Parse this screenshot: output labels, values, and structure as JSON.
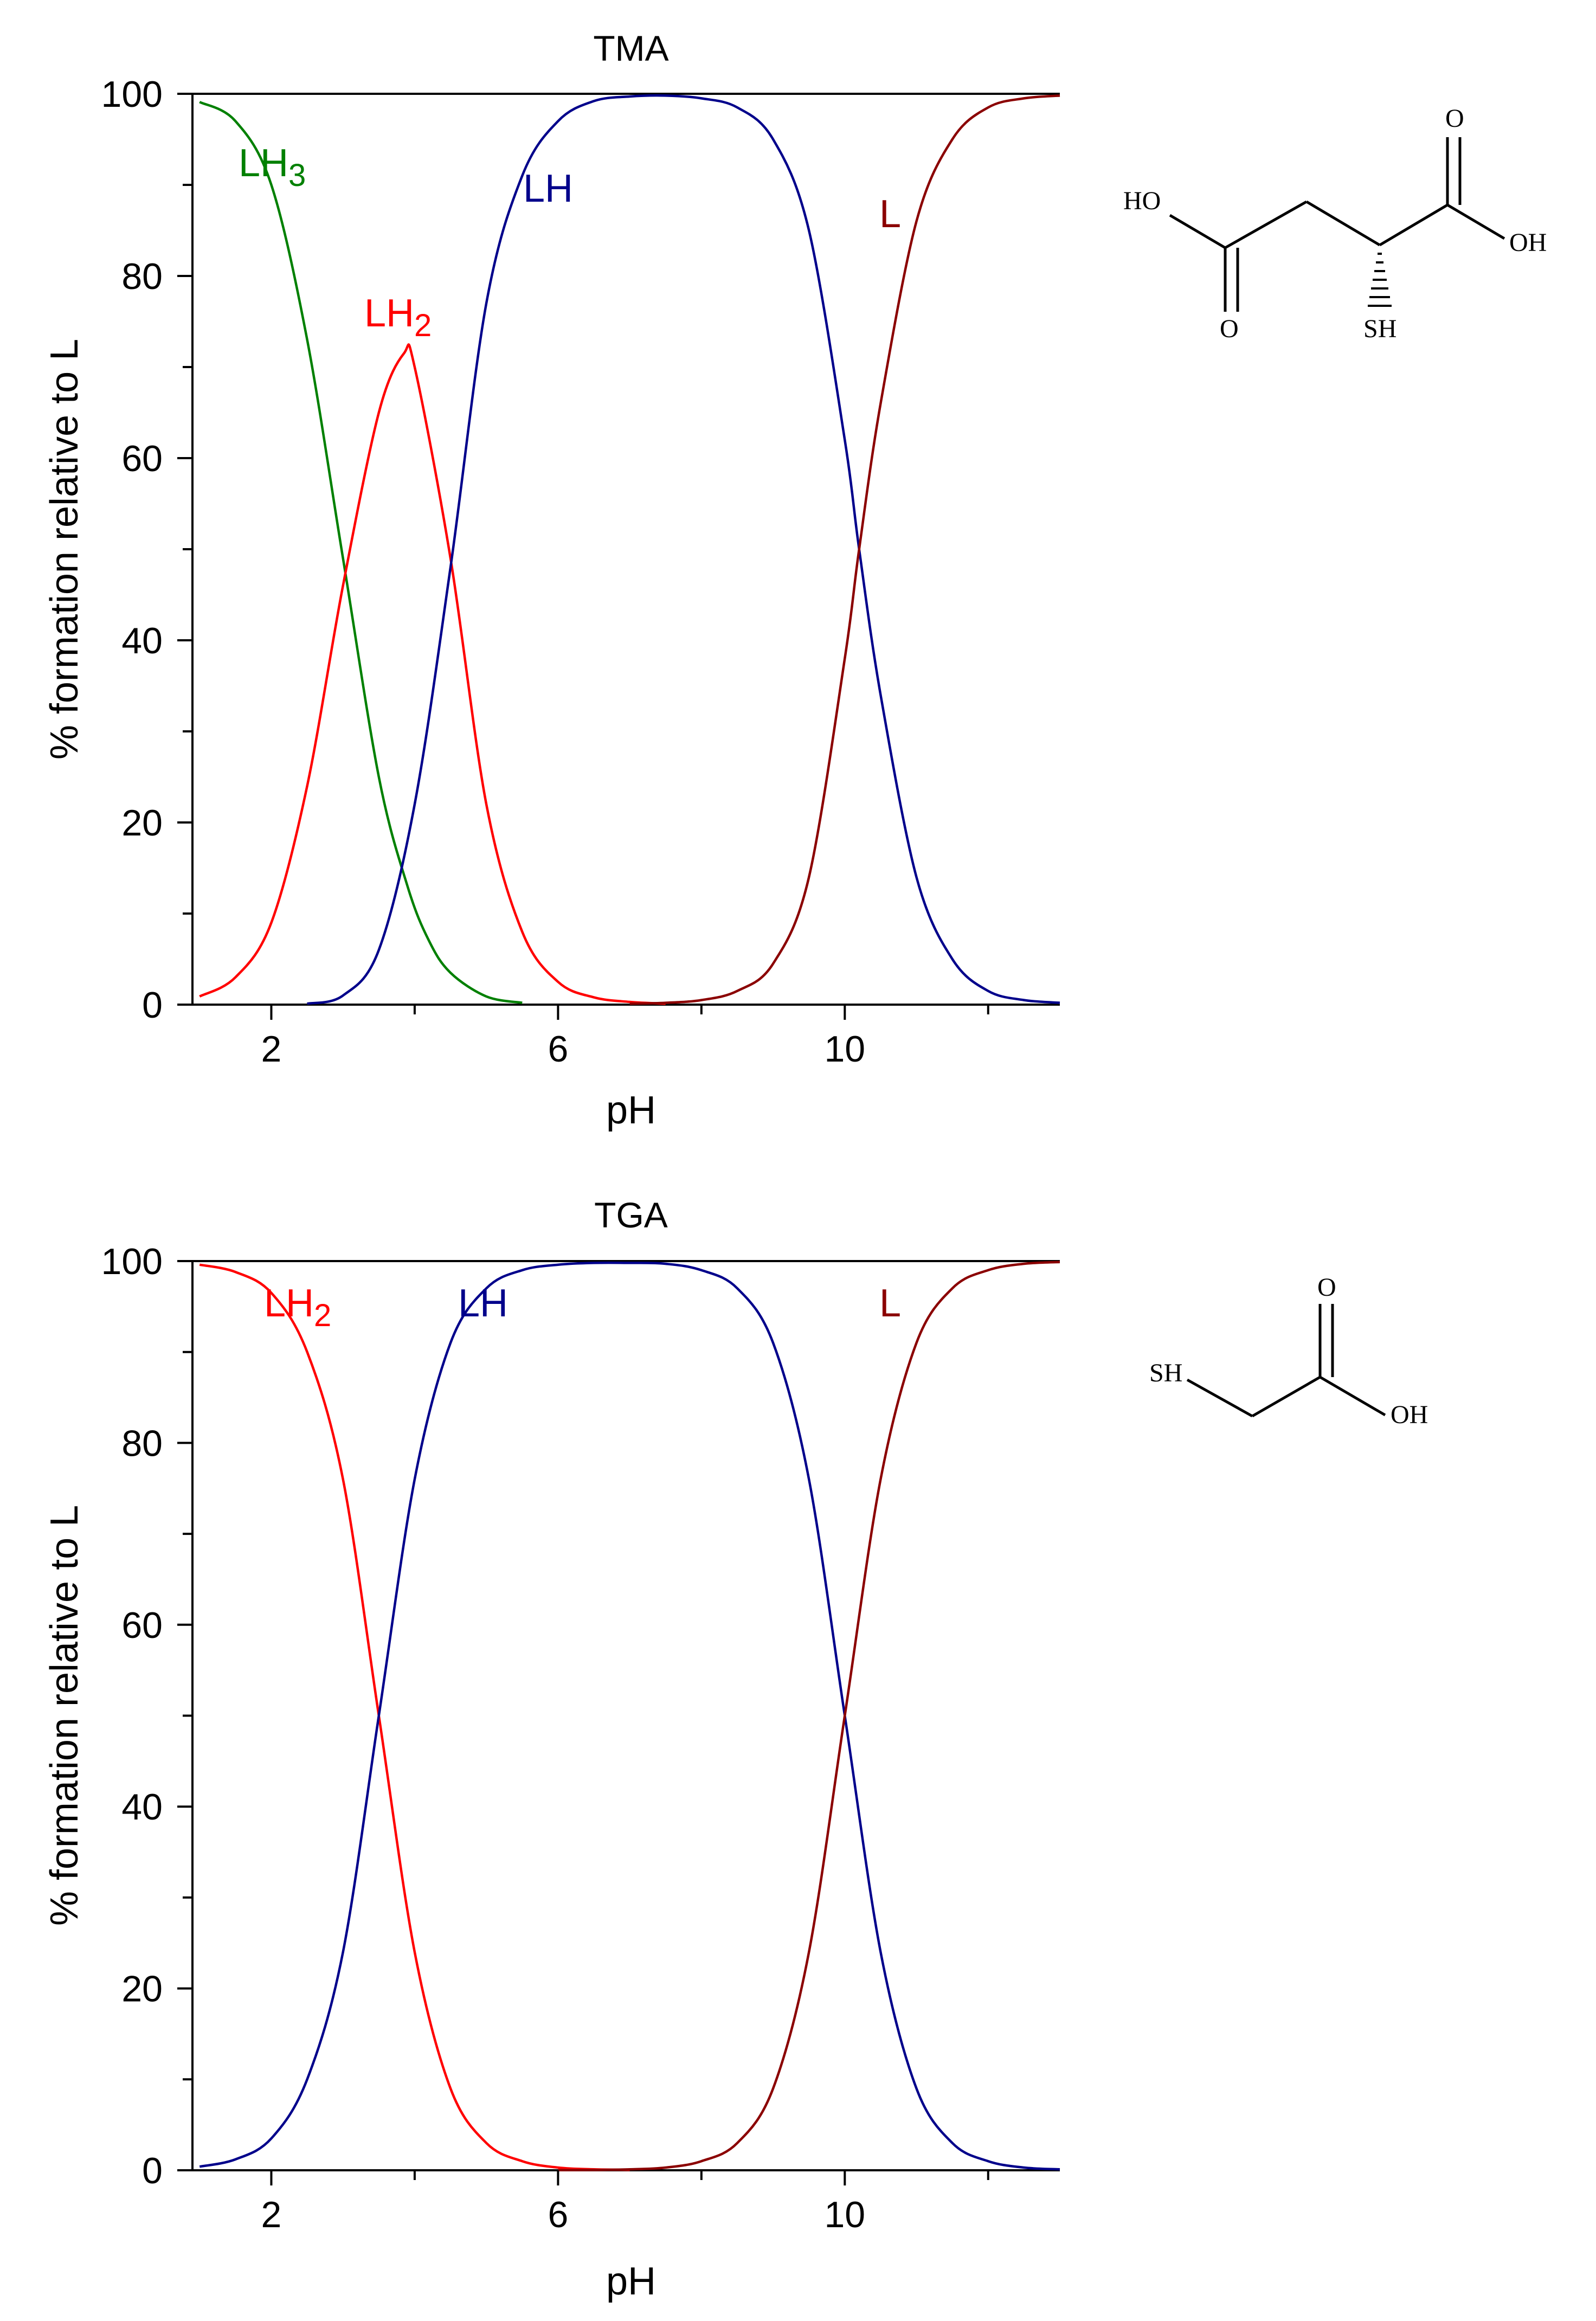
{
  "chart_data": [
    {
      "type": "line",
      "title": "TMA",
      "xlabel": "pH",
      "ylabel": "% formation relative to L",
      "xlim": [
        0.9,
        13.0
      ],
      "ylim": [
        0,
        100
      ],
      "x_major_ticks": [
        2,
        6,
        10
      ],
      "x_minor_ticks": [
        4,
        8,
        12
      ],
      "y_major_ticks": [
        0,
        20,
        40,
        60,
        80,
        100
      ],
      "y_minor_ticks": [
        10,
        30,
        50,
        70,
        90
      ],
      "grid": false,
      "pKa": [
        2.95,
        4.7,
        10.2
      ],
      "series": [
        {
          "name": "LH3",
          "label_main": "LH",
          "label_sub": "3",
          "color": "#008000",
          "x": [
            1.0,
            1.5,
            2.0,
            2.5,
            3.0,
            3.5,
            3.9,
            4.2,
            4.5,
            5.0,
            5.5
          ],
          "values": [
            99.1,
            97.0,
            90.0,
            73.0,
            49.0,
            25.0,
            13.0,
            7.0,
            3.5,
            0.9,
            0.2
          ]
        },
        {
          "name": "LH2",
          "label_main": "LH",
          "label_sub": "2",
          "color": "#ff0000",
          "x": [
            1.0,
            1.5,
            2.0,
            2.5,
            3.0,
            3.5,
            3.85,
            4.0,
            4.5,
            5.0,
            5.5,
            6.0,
            6.5,
            7.0,
            7.5
          ],
          "values": [
            0.9,
            3.0,
            9.0,
            24.0,
            46.0,
            65.0,
            71.5,
            70.0,
            49.0,
            22.0,
            8.0,
            2.5,
            0.8,
            0.3,
            0.1
          ]
        },
        {
          "name": "LH",
          "label_main": "LH",
          "label_sub": "",
          "color": "#00008b",
          "x": [
            2.5,
            3.0,
            3.5,
            4.0,
            4.5,
            5.0,
            5.5,
            6.0,
            6.5,
            7.0,
            7.5,
            8.0,
            8.5,
            9.0,
            9.5,
            10.0,
            10.2,
            10.5,
            11.0,
            11.5,
            12.0,
            12.5,
            13.0
          ],
          "values": [
            0.1,
            1.0,
            6.0,
            22.0,
            48.0,
            77.0,
            91.0,
            97.0,
            99.2,
            99.7,
            99.8,
            99.5,
            98.5,
            95.0,
            85.0,
            62.0,
            50.0,
            34.0,
            14.0,
            5.0,
            1.5,
            0.5,
            0.2
          ]
        },
        {
          "name": "L",
          "label_main": "L",
          "label_sub": "",
          "color": "#8b0000",
          "x": [
            7.0,
            7.5,
            8.0,
            8.5,
            9.0,
            9.5,
            10.0,
            10.2,
            10.5,
            11.0,
            11.5,
            12.0,
            12.5,
            13.0
          ],
          "values": [
            0.1,
            0.2,
            0.5,
            1.5,
            4.5,
            14.0,
            38.0,
            50.0,
            66.0,
            86.0,
            95.0,
            98.5,
            99.5,
            99.8
          ]
        }
      ]
    },
    {
      "type": "line",
      "title": "TGA",
      "xlabel": "pH",
      "ylabel": "% formation relative to L",
      "xlim": [
        0.9,
        13.0
      ],
      "ylim": [
        0,
        100
      ],
      "x_major_ticks": [
        2,
        6,
        10
      ],
      "x_minor_ticks": [
        4,
        8,
        12
      ],
      "y_major_ticks": [
        0,
        20,
        40,
        60,
        80,
        100
      ],
      "y_minor_ticks": [
        10,
        30,
        50,
        70,
        90
      ],
      "grid": false,
      "pKa": [
        3.5,
        10.0
      ],
      "series": [
        {
          "name": "LH2",
          "label_main": "LH",
          "label_sub": "2",
          "color": "#ff0000",
          "x": [
            1.0,
            1.5,
            2.0,
            2.5,
            3.0,
            3.5,
            4.0,
            4.5,
            5.0,
            5.5,
            6.0,
            6.5,
            7.0
          ],
          "values": [
            99.6,
            98.8,
            96.5,
            90.0,
            76.0,
            50.0,
            24.0,
            9.0,
            3.0,
            1.0,
            0.3,
            0.1,
            0.05
          ]
        },
        {
          "name": "LH",
          "label_main": "LH",
          "label_sub": "",
          "color": "#00008b",
          "x": [
            1.0,
            1.5,
            2.0,
            2.5,
            3.0,
            3.5,
            4.0,
            4.5,
            5.0,
            5.5,
            6.0,
            6.5,
            7.0,
            7.5,
            8.0,
            8.5,
            9.0,
            9.5,
            10.0,
            10.5,
            11.0,
            11.5,
            12.0,
            12.5,
            13.0
          ],
          "values": [
            0.4,
            1.2,
            3.5,
            10.0,
            24.0,
            50.0,
            76.0,
            91.0,
            97.0,
            99.0,
            99.6,
            99.8,
            99.8,
            99.7,
            99.0,
            97.0,
            91.0,
            76.0,
            50.0,
            24.0,
            9.0,
            3.0,
            1.0,
            0.3,
            0.1
          ]
        },
        {
          "name": "L",
          "label_main": "L",
          "label_sub": "",
          "color": "#8b0000",
          "x": [
            6.0,
            6.5,
            7.0,
            7.5,
            8.0,
            8.5,
            9.0,
            9.5,
            10.0,
            10.5,
            11.0,
            11.5,
            12.0,
            12.5,
            13.0
          ],
          "values": [
            0.01,
            0.03,
            0.1,
            0.3,
            1.0,
            3.0,
            9.0,
            24.0,
            50.0,
            76.0,
            91.0,
            97.0,
            99.0,
            99.7,
            99.9
          ]
        }
      ]
    }
  ],
  "structures": {
    "tma": {
      "ho": "HO",
      "o_top": "O",
      "oh": "OH",
      "o_bottom": "O",
      "sh": "SH"
    },
    "tga": {
      "sh": "SH",
      "o_top": "O",
      "oh": "OH"
    }
  }
}
